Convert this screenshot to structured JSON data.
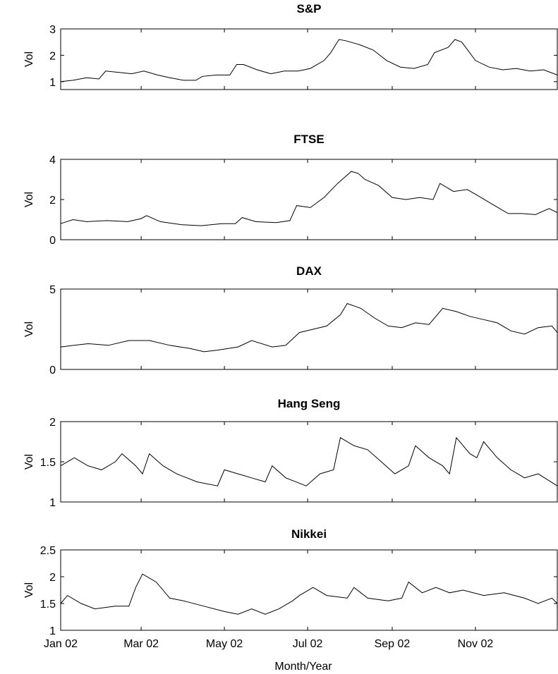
{
  "chart_data": {
    "type": "line",
    "xlabel": "Month/Year",
    "x_ticks": [
      "Jan 02",
      "Mar 02",
      "May 02",
      "Jul 02",
      "Sep 02",
      "Nov 02"
    ],
    "x_range": [
      "2002-01-01",
      "2002-12-31"
    ],
    "panels": [
      {
        "title": "S&P",
        "ylabel": "Vol",
        "ylim": [
          0.7,
          3
        ],
        "yticks": [
          "1",
          "2",
          "3"
        ],
        "series": [
          {
            "x": "2002-01-01",
            "y": 1.0
          },
          {
            "x": "2002-01-10",
            "y": 1.05
          },
          {
            "x": "2002-01-20",
            "y": 1.15
          },
          {
            "x": "2002-01-29",
            "y": 1.1
          },
          {
            "x": "2002-02-03",
            "y": 1.4
          },
          {
            "x": "2002-02-13",
            "y": 1.35
          },
          {
            "x": "2002-02-22",
            "y": 1.3
          },
          {
            "x": "2002-03-03",
            "y": 1.4
          },
          {
            "x": "2002-03-13",
            "y": 1.25
          },
          {
            "x": "2002-03-22",
            "y": 1.15
          },
          {
            "x": "2002-04-01",
            "y": 1.05
          },
          {
            "x": "2002-04-10",
            "y": 1.05
          },
          {
            "x": "2002-04-15",
            "y": 1.2
          },
          {
            "x": "2002-04-25",
            "y": 1.25
          },
          {
            "x": "2002-05-05",
            "y": 1.25
          },
          {
            "x": "2002-05-10",
            "y": 1.65
          },
          {
            "x": "2002-05-15",
            "y": 1.65
          },
          {
            "x": "2002-05-25",
            "y": 1.45
          },
          {
            "x": "2002-06-04",
            "y": 1.3
          },
          {
            "x": "2002-06-14",
            "y": 1.4
          },
          {
            "x": "2002-06-24",
            "y": 1.4
          },
          {
            "x": "2002-07-03",
            "y": 1.5
          },
          {
            "x": "2002-07-13",
            "y": 1.8
          },
          {
            "x": "2002-07-18",
            "y": 2.1
          },
          {
            "x": "2002-07-24",
            "y": 2.6
          },
          {
            "x": "2002-07-29",
            "y": 2.55
          },
          {
            "x": "2002-08-08",
            "y": 2.4
          },
          {
            "x": "2002-08-18",
            "y": 2.2
          },
          {
            "x": "2002-08-28",
            "y": 1.8
          },
          {
            "x": "2002-09-07",
            "y": 1.55
          },
          {
            "x": "2002-09-17",
            "y": 1.5
          },
          {
            "x": "2002-09-27",
            "y": 1.65
          },
          {
            "x": "2002-10-02",
            "y": 2.1
          },
          {
            "x": "2002-10-12",
            "y": 2.3
          },
          {
            "x": "2002-10-17",
            "y": 2.6
          },
          {
            "x": "2002-10-22",
            "y": 2.5
          },
          {
            "x": "2002-11-01",
            "y": 1.8
          },
          {
            "x": "2002-11-11",
            "y": 1.55
          },
          {
            "x": "2002-11-21",
            "y": 1.45
          },
          {
            "x": "2002-12-01",
            "y": 1.5
          },
          {
            "x": "2002-12-11",
            "y": 1.4
          },
          {
            "x": "2002-12-21",
            "y": 1.45
          },
          {
            "x": "2002-12-31",
            "y": 1.25
          }
        ]
      },
      {
        "title": "FTSE",
        "ylabel": "Vol",
        "ylim": [
          0,
          4
        ],
        "yticks": [
          "0",
          "2",
          "4"
        ],
        "series": [
          {
            "x": "2002-01-01",
            "y": 0.8
          },
          {
            "x": "2002-01-10",
            "y": 1.0
          },
          {
            "x": "2002-01-20",
            "y": 0.9
          },
          {
            "x": "2002-02-04",
            "y": 0.95
          },
          {
            "x": "2002-02-19",
            "y": 0.9
          },
          {
            "x": "2002-03-01",
            "y": 1.05
          },
          {
            "x": "2002-03-05",
            "y": 1.2
          },
          {
            "x": "2002-03-15",
            "y": 0.9
          },
          {
            "x": "2002-03-30",
            "y": 0.75
          },
          {
            "x": "2002-04-14",
            "y": 0.7
          },
          {
            "x": "2002-04-29",
            "y": 0.8
          },
          {
            "x": "2002-05-09",
            "y": 0.8
          },
          {
            "x": "2002-05-14",
            "y": 1.1
          },
          {
            "x": "2002-05-24",
            "y": 0.9
          },
          {
            "x": "2002-06-08",
            "y": 0.85
          },
          {
            "x": "2002-06-18",
            "y": 0.95
          },
          {
            "x": "2002-06-23",
            "y": 1.7
          },
          {
            "x": "2002-07-03",
            "y": 1.6
          },
          {
            "x": "2002-07-13",
            "y": 2.1
          },
          {
            "x": "2002-07-23",
            "y": 2.8
          },
          {
            "x": "2002-08-02",
            "y": 3.4
          },
          {
            "x": "2002-08-07",
            "y": 3.3
          },
          {
            "x": "2002-08-12",
            "y": 3.0
          },
          {
            "x": "2002-08-22",
            "y": 2.7
          },
          {
            "x": "2002-09-01",
            "y": 2.1
          },
          {
            "x": "2002-09-11",
            "y": 2.0
          },
          {
            "x": "2002-09-21",
            "y": 2.1
          },
          {
            "x": "2002-10-01",
            "y": 2.0
          },
          {
            "x": "2002-10-06",
            "y": 2.8
          },
          {
            "x": "2002-10-16",
            "y": 2.4
          },
          {
            "x": "2002-10-26",
            "y": 2.5
          },
          {
            "x": "2002-11-05",
            "y": 2.1
          },
          {
            "x": "2002-11-15",
            "y": 1.7
          },
          {
            "x": "2002-11-25",
            "y": 1.3
          },
          {
            "x": "2002-12-05",
            "y": 1.3
          },
          {
            "x": "2002-12-15",
            "y": 1.25
          },
          {
            "x": "2002-12-25",
            "y": 1.55
          },
          {
            "x": "2002-12-31",
            "y": 1.35
          }
        ]
      },
      {
        "title": "DAX",
        "ylabel": "Vol",
        "ylim": [
          0,
          5
        ],
        "yticks": [
          "0",
          "5"
        ],
        "series": [
          {
            "x": "2002-01-01",
            "y": 1.4
          },
          {
            "x": "2002-01-11",
            "y": 1.5
          },
          {
            "x": "2002-01-21",
            "y": 1.6
          },
          {
            "x": "2002-02-05",
            "y": 1.5
          },
          {
            "x": "2002-02-20",
            "y": 1.8
          },
          {
            "x": "2002-03-07",
            "y": 1.8
          },
          {
            "x": "2002-03-22",
            "y": 1.5
          },
          {
            "x": "2002-04-06",
            "y": 1.3
          },
          {
            "x": "2002-04-16",
            "y": 1.1
          },
          {
            "x": "2002-04-26",
            "y": 1.2
          },
          {
            "x": "2002-05-11",
            "y": 1.4
          },
          {
            "x": "2002-05-21",
            "y": 1.8
          },
          {
            "x": "2002-06-05",
            "y": 1.4
          },
          {
            "x": "2002-06-15",
            "y": 1.5
          },
          {
            "x": "2002-06-25",
            "y": 2.3
          },
          {
            "x": "2002-07-05",
            "y": 2.5
          },
          {
            "x": "2002-07-15",
            "y": 2.7
          },
          {
            "x": "2002-07-25",
            "y": 3.4
          },
          {
            "x": "2002-07-30",
            "y": 4.1
          },
          {
            "x": "2002-08-09",
            "y": 3.8
          },
          {
            "x": "2002-08-19",
            "y": 3.2
          },
          {
            "x": "2002-08-29",
            "y": 2.7
          },
          {
            "x": "2002-09-08",
            "y": 2.6
          },
          {
            "x": "2002-09-18",
            "y": 2.9
          },
          {
            "x": "2002-09-28",
            "y": 2.8
          },
          {
            "x": "2002-10-08",
            "y": 3.8
          },
          {
            "x": "2002-10-18",
            "y": 3.6
          },
          {
            "x": "2002-10-28",
            "y": 3.3
          },
          {
            "x": "2002-11-07",
            "y": 3.1
          },
          {
            "x": "2002-11-17",
            "y": 2.9
          },
          {
            "x": "2002-11-27",
            "y": 2.4
          },
          {
            "x": "2002-12-07",
            "y": 2.2
          },
          {
            "x": "2002-12-17",
            "y": 2.6
          },
          {
            "x": "2002-12-27",
            "y": 2.7
          },
          {
            "x": "2002-12-31",
            "y": 2.3
          }
        ]
      },
      {
        "title": "Hang Seng",
        "ylabel": "Vol",
        "ylim": [
          1,
          2
        ],
        "yticks": [
          "1",
          "1.5",
          "2"
        ],
        "series": [
          {
            "x": "2002-01-01",
            "y": 1.45
          },
          {
            "x": "2002-01-11",
            "y": 1.55
          },
          {
            "x": "2002-01-21",
            "y": 1.45
          },
          {
            "x": "2002-01-31",
            "y": 1.4
          },
          {
            "x": "2002-02-10",
            "y": 1.5
          },
          {
            "x": "2002-02-15",
            "y": 1.6
          },
          {
            "x": "2002-02-25",
            "y": 1.45
          },
          {
            "x": "2002-03-02",
            "y": 1.35
          },
          {
            "x": "2002-03-07",
            "y": 1.6
          },
          {
            "x": "2002-03-17",
            "y": 1.45
          },
          {
            "x": "2002-03-27",
            "y": 1.35
          },
          {
            "x": "2002-04-11",
            "y": 1.25
          },
          {
            "x": "2002-04-26",
            "y": 1.2
          },
          {
            "x": "2002-05-01",
            "y": 1.4
          },
          {
            "x": "2002-05-11",
            "y": 1.35
          },
          {
            "x": "2002-05-21",
            "y": 1.3
          },
          {
            "x": "2002-05-31",
            "y": 1.25
          },
          {
            "x": "2002-06-05",
            "y": 1.45
          },
          {
            "x": "2002-06-15",
            "y": 1.3
          },
          {
            "x": "2002-06-30",
            "y": 1.2
          },
          {
            "x": "2002-07-10",
            "y": 1.35
          },
          {
            "x": "2002-07-20",
            "y": 1.4
          },
          {
            "x": "2002-07-25",
            "y": 1.8
          },
          {
            "x": "2002-08-04",
            "y": 1.7
          },
          {
            "x": "2002-08-14",
            "y": 1.65
          },
          {
            "x": "2002-08-24",
            "y": 1.5
          },
          {
            "x": "2002-09-03",
            "y": 1.35
          },
          {
            "x": "2002-09-13",
            "y": 1.45
          },
          {
            "x": "2002-09-18",
            "y": 1.7
          },
          {
            "x": "2002-09-28",
            "y": 1.55
          },
          {
            "x": "2002-10-08",
            "y": 1.45
          },
          {
            "x": "2002-10-13",
            "y": 1.35
          },
          {
            "x": "2002-10-18",
            "y": 1.8
          },
          {
            "x": "2002-10-28",
            "y": 1.6
          },
          {
            "x": "2002-11-02",
            "y": 1.55
          },
          {
            "x": "2002-11-07",
            "y": 1.75
          },
          {
            "x": "2002-11-17",
            "y": 1.55
          },
          {
            "x": "2002-11-27",
            "y": 1.4
          },
          {
            "x": "2002-12-07",
            "y": 1.3
          },
          {
            "x": "2002-12-17",
            "y": 1.35
          },
          {
            "x": "2002-12-31",
            "y": 1.2
          }
        ]
      },
      {
        "title": "Nikkei",
        "ylabel": "Vol",
        "ylim": [
          1,
          2.5
        ],
        "yticks": [
          "1",
          "1.5",
          "2",
          "2.5"
        ],
        "series": [
          {
            "x": "2002-01-01",
            "y": 1.5
          },
          {
            "x": "2002-01-06",
            "y": 1.65
          },
          {
            "x": "2002-01-16",
            "y": 1.5
          },
          {
            "x": "2002-01-26",
            "y": 1.4
          },
          {
            "x": "2002-02-10",
            "y": 1.45
          },
          {
            "x": "2002-02-20",
            "y": 1.45
          },
          {
            "x": "2002-02-25",
            "y": 1.8
          },
          {
            "x": "2002-03-02",
            "y": 2.05
          },
          {
            "x": "2002-03-12",
            "y": 1.9
          },
          {
            "x": "2002-03-22",
            "y": 1.6
          },
          {
            "x": "2002-04-01",
            "y": 1.55
          },
          {
            "x": "2002-04-16",
            "y": 1.45
          },
          {
            "x": "2002-05-01",
            "y": 1.35
          },
          {
            "x": "2002-05-11",
            "y": 1.3
          },
          {
            "x": "2002-05-21",
            "y": 1.4
          },
          {
            "x": "2002-05-31",
            "y": 1.3
          },
          {
            "x": "2002-06-10",
            "y": 1.4
          },
          {
            "x": "2002-06-20",
            "y": 1.55
          },
          {
            "x": "2002-06-25",
            "y": 1.65
          },
          {
            "x": "2002-07-05",
            "y": 1.8
          },
          {
            "x": "2002-07-15",
            "y": 1.65
          },
          {
            "x": "2002-07-30",
            "y": 1.6
          },
          {
            "x": "2002-08-04",
            "y": 1.8
          },
          {
            "x": "2002-08-14",
            "y": 1.6
          },
          {
            "x": "2002-08-29",
            "y": 1.55
          },
          {
            "x": "2002-09-08",
            "y": 1.6
          },
          {
            "x": "2002-09-13",
            "y": 1.9
          },
          {
            "x": "2002-09-23",
            "y": 1.7
          },
          {
            "x": "2002-10-03",
            "y": 1.8
          },
          {
            "x": "2002-10-13",
            "y": 1.7
          },
          {
            "x": "2002-10-23",
            "y": 1.75
          },
          {
            "x": "2002-11-07",
            "y": 1.65
          },
          {
            "x": "2002-11-22",
            "y": 1.7
          },
          {
            "x": "2002-12-07",
            "y": 1.6
          },
          {
            "x": "2002-12-17",
            "y": 1.5
          },
          {
            "x": "2002-12-27",
            "y": 1.6
          },
          {
            "x": "2002-12-31",
            "y": 1.5
          }
        ]
      }
    ]
  }
}
